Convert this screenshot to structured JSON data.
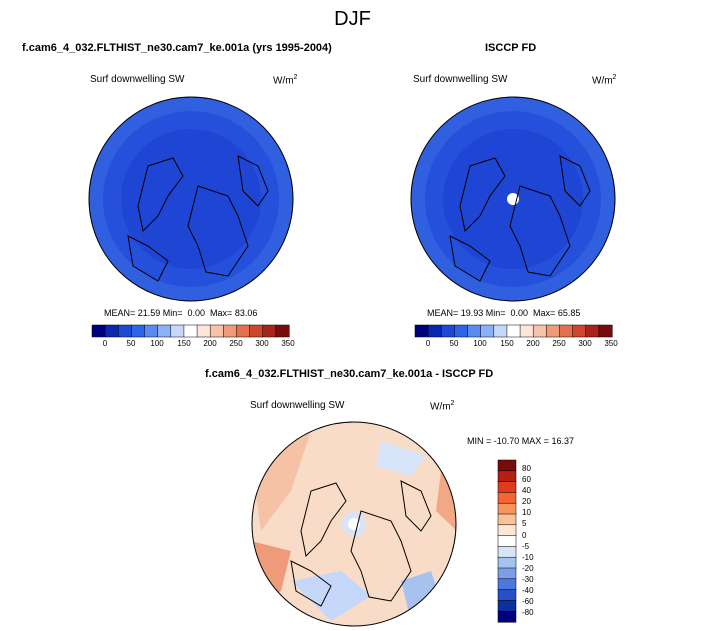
{
  "title": "DJF",
  "panels": [
    {
      "id": "model",
      "header": "f.cam6_4_032.FLTHIST_ne30.cam7_ke.001a (yrs 1995-2004)",
      "variable": "Surf downwelling SW",
      "units_base": "W/m",
      "units_sup": "2",
      "stats": "MEAN= 21.59 Min=  0.00  Max= 83.06",
      "colorbar_ticks": [
        "0",
        "50",
        "100",
        "150",
        "200",
        "250",
        "300",
        "350"
      ]
    },
    {
      "id": "obs",
      "header": "ISCCP FD",
      "variable": "Surf downwelling SW",
      "units_base": "W/m",
      "units_sup": "2",
      "stats": "MEAN= 19.93 Min=  0.00  Max= 65.85",
      "colorbar_ticks": [
        "0",
        "50",
        "100",
        "150",
        "200",
        "250",
        "300",
        "350"
      ]
    },
    {
      "id": "diff",
      "header": "f.cam6_4_032.FLTHIST_ne30.cam7_ke.001a - ISCCP FD",
      "variable": "Surf downwelling SW",
      "units_base": "W/m",
      "units_sup": "2",
      "stats": "MIN = -10.70 MAX = 16.37",
      "colorbar_ticks": [
        "80",
        "60",
        "40",
        "20",
        "10",
        "5",
        "0",
        "-5",
        "-10",
        "-20",
        "-30",
        "-40",
        "-60",
        "-80"
      ]
    }
  ],
  "colors": {
    "abs_scale": [
      "#00007f",
      "#0a27b0",
      "#1f48d6",
      "#2e64e8",
      "#5b8af0",
      "#8cb0f5",
      "#c6d8fa",
      "#ffffff",
      "#fde6d8",
      "#f7c3a8",
      "#ef9a78",
      "#e66f4e",
      "#cf4530",
      "#a8241a",
      "#7a0b0b"
    ],
    "diff_scale": [
      "#7a0b0b",
      "#b51f14",
      "#e03b1c",
      "#f26633",
      "#f7955e",
      "#fbc19a",
      "#fde8d8",
      "#ffffff",
      "#d8e4f7",
      "#a8c2f0",
      "#7a9fe8",
      "#4c78de",
      "#2650c8",
      "#0d2fa0",
      "#00007f"
    ],
    "map_fill_model": "#1d3fd0",
    "map_fill_obs": "#1d3fd0",
    "map_fill_diff": "#f9dcc8"
  }
}
